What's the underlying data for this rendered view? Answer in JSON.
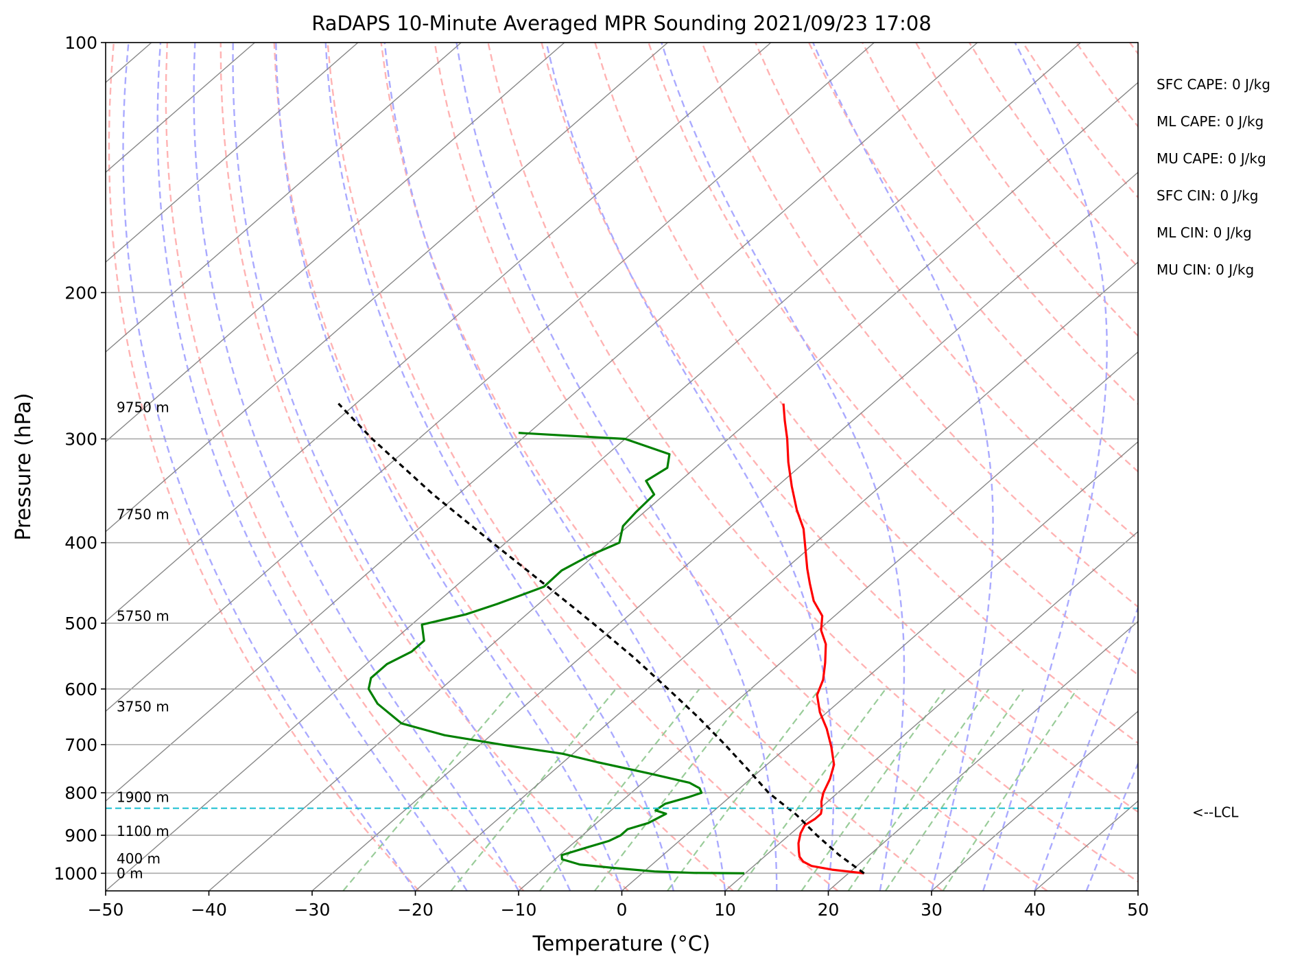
{
  "chart_data": {
    "type": "line",
    "title": "RaDAPS 10-Minute Averaged MPR Sounding 2021/09/23 17:08",
    "xlabel": "Temperature (°C)",
    "ylabel": "Pressure (hPa)",
    "xlim": [
      -50,
      50
    ],
    "ylim": [
      1050,
      100
    ],
    "y_scale": "log",
    "x_ticks": [
      "−50",
      "−40",
      "−30",
      "−20",
      "−10",
      "0",
      "10",
      "20",
      "30",
      "40",
      "50"
    ],
    "x_tick_values": [
      -50,
      -40,
      -30,
      -20,
      -10,
      0,
      10,
      20,
      30,
      40,
      50
    ],
    "y_ticks": [
      "1000",
      "900",
      "800",
      "700",
      "600",
      "500",
      "400",
      "300",
      "200",
      "100"
    ],
    "y_tick_values": [
      1000,
      900,
      800,
      700,
      600,
      500,
      400,
      300,
      200,
      100
    ],
    "grid": true,
    "height_labels": [
      {
        "text": "0 m",
        "p": 1000
      },
      {
        "text": "400 m",
        "p": 960
      },
      {
        "text": "1100 m",
        "p": 890
      },
      {
        "text": "1900 m",
        "p": 810
      },
      {
        "text": "3750 m",
        "p": 630
      },
      {
        "text": "5750 m",
        "p": 490
      },
      {
        "text": "7750 m",
        "p": 370
      },
      {
        "text": "9750 m",
        "p": 275
      }
    ],
    "lcl": {
      "label": "<--LCL",
      "p": 835
    },
    "indices": [
      "SFC CAPE: 0 J/kg",
      "ML CAPE: 0 J/kg",
      "MU CAPE: 0 J/kg",
      "SFC CIN: 0 J/kg",
      "ML CIN: 0 J/kg",
      "MU CIN: 0 J/kg"
    ],
    "series": [
      {
        "color": "#ff0000",
        "points": [
          [
            1000,
            21.5
          ],
          [
            990,
            18.0
          ],
          [
            980,
            15.6
          ],
          [
            968,
            14.3
          ],
          [
            955,
            13.4
          ],
          [
            940,
            12.7
          ],
          [
            920,
            11.8
          ],
          [
            895,
            10.9
          ],
          [
            875,
            10.4
          ],
          [
            860,
            10.7
          ],
          [
            848,
            10.7
          ],
          [
            838,
            10.3
          ],
          [
            820,
            9.4
          ],
          [
            800,
            8.6
          ],
          [
            770,
            7.7
          ],
          [
            740,
            6.5
          ],
          [
            705,
            4.3
          ],
          [
            670,
            1.8
          ],
          [
            640,
            -0.7
          ],
          [
            610,
            -2.9
          ],
          [
            585,
            -4.0
          ],
          [
            558,
            -5.7
          ],
          [
            530,
            -7.7
          ],
          [
            510,
            -9.7
          ],
          [
            490,
            -11.2
          ],
          [
            470,
            -13.7
          ],
          [
            448,
            -16.0
          ],
          [
            430,
            -17.9
          ],
          [
            405,
            -20.5
          ],
          [
            385,
            -22.7
          ],
          [
            365,
            -25.5
          ],
          [
            342,
            -28.6
          ],
          [
            320,
            -31.6
          ],
          [
            300,
            -34.3
          ],
          [
            285,
            -36.6
          ],
          [
            272,
            -38.6
          ]
        ]
      },
      {
        "color": "#008000",
        "points": [
          [
            1000,
            9.9
          ],
          [
            999,
            5.0
          ],
          [
            995,
            1.0
          ],
          [
            985,
            -3.5
          ],
          [
            976,
            -7.0
          ],
          [
            962,
            -9.3
          ],
          [
            951,
            -9.8
          ],
          [
            932,
            -8.3
          ],
          [
            914,
            -6.8
          ],
          [
            900,
            -6.3
          ],
          [
            885,
            -6.3
          ],
          [
            870,
            -5.0
          ],
          [
            848,
            -4.3
          ],
          [
            840,
            -5.7
          ],
          [
            825,
            -5.5
          ],
          [
            810,
            -4.0
          ],
          [
            800,
            -3.2
          ],
          [
            790,
            -3.9
          ],
          [
            778,
            -5.5
          ],
          [
            758,
            -10.5
          ],
          [
            735,
            -16.7
          ],
          [
            718,
            -21.0
          ],
          [
            702,
            -27.2
          ],
          [
            682,
            -34.5
          ],
          [
            660,
            -40.0
          ],
          [
            625,
            -44.5
          ],
          [
            600,
            -47.0
          ],
          [
            582,
            -48.0
          ],
          [
            560,
            -48.0
          ],
          [
            541,
            -47.0
          ],
          [
            525,
            -47.0
          ],
          [
            502,
            -49.0
          ],
          [
            488,
            -45.9
          ],
          [
            474,
            -44.0
          ],
          [
            452,
            -41.4
          ],
          [
            432,
            -41.5
          ],
          [
            415,
            -40.5
          ],
          [
            400,
            -39.0
          ],
          [
            382,
            -40.5
          ],
          [
            368,
            -40.8
          ],
          [
            350,
            -41.0
          ],
          [
            337,
            -43.3
          ],
          [
            325,
            -42.7
          ],
          [
            313,
            -44.0
          ],
          [
            300,
            -50.0
          ],
          [
            295,
            -61.0
          ]
        ]
      },
      {
        "color": "#000000",
        "dash": "8,6",
        "points": [
          [
            1000,
            21.5
          ],
          [
            950,
            17.0
          ],
          [
            900,
            12.7
          ],
          [
            850,
            8.4
          ],
          [
            835,
            6.9
          ],
          [
            800,
            3.3
          ],
          [
            750,
            -1.3
          ],
          [
            700,
            -6.3
          ],
          [
            650,
            -11.8
          ],
          [
            600,
            -18.0
          ],
          [
            550,
            -24.8
          ],
          [
            500,
            -32.6
          ],
          [
            450,
            -41.4
          ],
          [
            400,
            -51.3
          ],
          [
            350,
            -62.4
          ],
          [
            300,
            -74.5
          ],
          [
            272,
            -81.7
          ]
        ]
      }
    ],
    "background_lines": {
      "isotherms_color": "#888888",
      "dry_adiabats_color": "#ffb3b3",
      "moist_adiabats_color": "#aaaaff",
      "mixing_ratio_color": "#99cc99"
    }
  }
}
